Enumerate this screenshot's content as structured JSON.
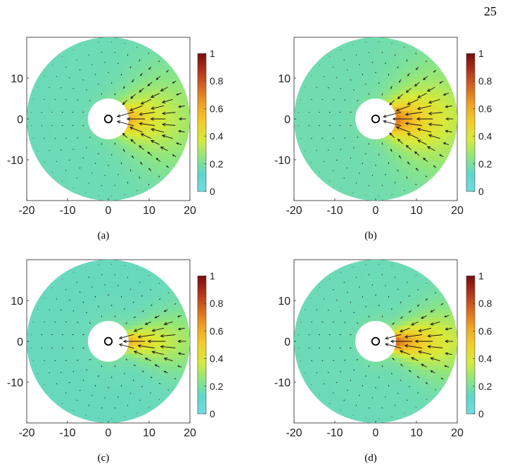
{
  "page_number": "25",
  "colorscale": [
    "#6fdce0",
    "#5fd6cc",
    "#8fe67f",
    "#d6ea3a",
    "#f2cf2a",
    "#f0a524",
    "#d96a1f",
    "#b0341b",
    "#7a0c0c"
  ],
  "chart_data": [
    {
      "type": "heatmap",
      "caption": "(a)",
      "x_ticks": [
        "-20",
        "-10",
        "0",
        "10",
        "20"
      ],
      "y_ticks": [
        "10",
        "0",
        "-10"
      ],
      "xlim": [
        -20,
        20
      ],
      "ylim": [
        -20,
        20
      ],
      "colorbar_ticks": [
        "1",
        "0.8",
        "0.6",
        "0.4",
        "0.2",
        "0"
      ],
      "colorbar_range": [
        0,
        1
      ],
      "domain_outer_radius": 20,
      "hole_radius": 5,
      "source_radius": 0.9,
      "plume": {
        "peak": 0.55,
        "halfwidth_deg": 32,
        "background": 0.16
      },
      "arrow_field": {
        "ring_radii": [
          6.5,
          9,
          11.5,
          14,
          16.5,
          19
        ],
        "max_length": 5.2
      }
    },
    {
      "type": "heatmap",
      "caption": "(b)",
      "x_ticks": [
        "-20",
        "-10",
        "0",
        "10",
        "20"
      ],
      "y_ticks": [
        "10",
        "0",
        "-10"
      ],
      "xlim": [
        -20,
        20
      ],
      "ylim": [
        -20,
        20
      ],
      "colorbar_ticks": [
        "1",
        "0.8",
        "0.6",
        "0.4",
        "0.2",
        "0"
      ],
      "colorbar_range": [
        0,
        1
      ],
      "domain_outer_radius": 20,
      "hole_radius": 5,
      "source_radius": 0.9,
      "plume": {
        "peak": 0.68,
        "halfwidth_deg": 32,
        "background": 0.17
      },
      "arrow_field": {
        "ring_radii": [
          6.5,
          9,
          11.5,
          14,
          16.5,
          19
        ],
        "max_length": 5.6
      }
    },
    {
      "type": "heatmap",
      "caption": "(c)",
      "x_ticks": [
        "-20",
        "-10",
        "0",
        "10",
        "20"
      ],
      "y_ticks": [
        "10",
        "0",
        "-10"
      ],
      "xlim": [
        -20,
        20
      ],
      "ylim": [
        -20,
        20
      ],
      "colorbar_ticks": [
        "1",
        "0.8",
        "0.6",
        "0.4",
        "0.2",
        "0"
      ],
      "colorbar_range": [
        0,
        1
      ],
      "domain_outer_radius": 20,
      "hole_radius": 5,
      "source_radius": 0.9,
      "plume": {
        "peak": 0.55,
        "halfwidth_deg": 18,
        "background": 0.15
      },
      "arrow_field": {
        "ring_radii": [
          6.5,
          9,
          11.5,
          14,
          16.5,
          19
        ],
        "max_length": 6.2
      }
    },
    {
      "type": "heatmap",
      "caption": "(d)",
      "x_ticks": [
        "-20",
        "-10",
        "0",
        "10",
        "20"
      ],
      "y_ticks": [
        "10",
        "0",
        "-10"
      ],
      "xlim": [
        -20,
        20
      ],
      "ylim": [
        -20,
        20
      ],
      "colorbar_ticks": [
        "1",
        "0.8",
        "0.6",
        "0.4",
        "0.2",
        "0"
      ],
      "colorbar_range": [
        0,
        1
      ],
      "domain_outer_radius": 20,
      "hole_radius": 5,
      "source_radius": 0.9,
      "plume": {
        "peak": 0.72,
        "halfwidth_deg": 20,
        "background": 0.16
      },
      "arrow_field": {
        "ring_radii": [
          6.5,
          9,
          11.5,
          14,
          16.5,
          19
        ],
        "max_length": 6.2
      }
    }
  ]
}
